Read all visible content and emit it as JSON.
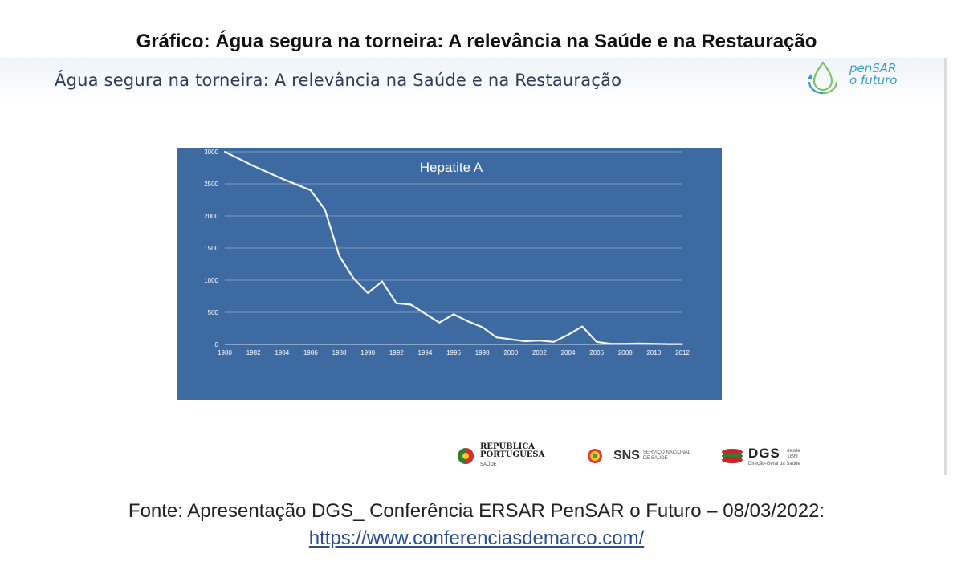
{
  "page": {
    "title": "Gráfico: Água segura na torneira: A relevância na Saúde e na Restauração",
    "source_text": "Fonte: Apresentação DGS_ Conferência ERSAR PenSAR o Futuro – 08/03/2022:",
    "source_url": "https://www.conferenciasdemarco.com/"
  },
  "slide": {
    "heading": "Água segura na torneira: A relevância na Saúde e na Restauração",
    "logo": {
      "line1": "penSAR",
      "line2": "o futuro"
    },
    "partners": {
      "republica": {
        "line1": "REPÚBLICA",
        "line2": "PORTUGUESA",
        "sub": "SAÚDE"
      },
      "sns": {
        "abbr": "SNS",
        "full_line1": "SERVIÇO NACIONAL",
        "full_line2": "DE SAÚDE"
      },
      "dgs": {
        "abbr": "DGS",
        "since_line1": "desde",
        "since_line2": "1899",
        "full": "Direção-Geral da Saúde"
      }
    }
  },
  "colors": {
    "chart_bg": "#3e6aa2",
    "line": "#f2f4f7",
    "grid": "#c6d3e6",
    "text": "#ffffff"
  },
  "chart_data": {
    "type": "line",
    "title": "Hepatite A",
    "xlabel": "",
    "ylabel": "",
    "xlim": [
      1980,
      2012
    ],
    "ylim": [
      0,
      3000
    ],
    "grid": true,
    "x_ticks": [
      1980,
      1982,
      1984,
      1986,
      1988,
      1990,
      1992,
      1994,
      1996,
      1998,
      2000,
      2002,
      2004,
      2006,
      2008,
      2010,
      2012
    ],
    "y_ticks": [
      0,
      500,
      1000,
      1500,
      2000,
      2500,
      3000
    ],
    "series": [
      {
        "x": [
          1980,
          1981,
          1982,
          1983,
          1984,
          1985,
          1986,
          1987,
          1988,
          1989,
          1990,
          1991,
          1992,
          1993,
          1994,
          1995,
          1996,
          1997,
          1998,
          1999,
          2000,
          2001,
          2002,
          2003,
          2004,
          2005,
          2006,
          2007,
          2008,
          2009,
          2010,
          2011,
          2012
        ],
        "values": [
          3000,
          2890,
          2780,
          2680,
          2580,
          2490,
          2400,
          2100,
          1380,
          1030,
          800,
          980,
          640,
          620,
          480,
          340,
          470,
          360,
          270,
          110,
          80,
          50,
          60,
          40,
          150,
          280,
          40,
          10,
          10,
          15,
          10,
          5,
          5
        ]
      }
    ]
  }
}
